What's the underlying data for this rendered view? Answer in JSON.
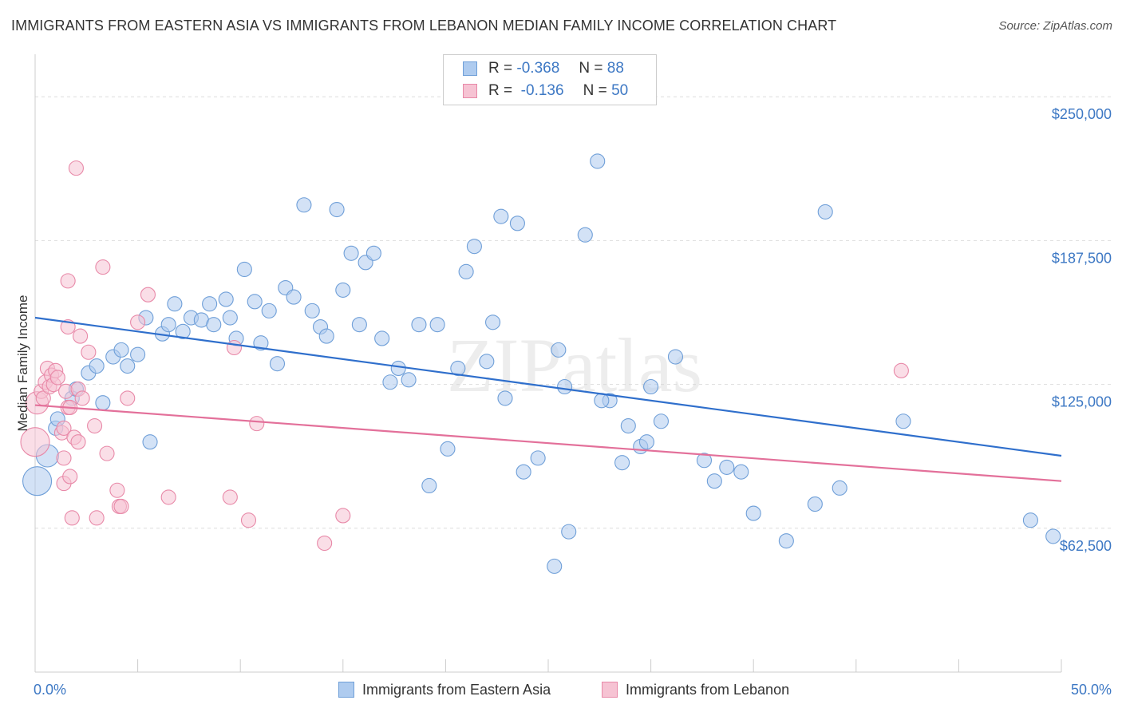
{
  "title": "IMMIGRANTS FROM EASTERN ASIA VS IMMIGRANTS FROM LEBANON MEDIAN FAMILY INCOME CORRELATION CHART",
  "source": "Source: ZipAtlas.com",
  "watermark": "ZIPatlas",
  "colors": {
    "blue_fill": "#aecbef",
    "blue_stroke": "#6f9fd8",
    "blue_line": "#2f6fcc",
    "pink_fill": "#f6c3d3",
    "pink_stroke": "#e889a8",
    "pink_line": "#e3709a",
    "tick_text": "#3d78c4"
  },
  "legend": {
    "r_label": "R =",
    "n_label": "N =",
    "series1": {
      "r": "-0.368",
      "n": "88"
    },
    "series2": {
      "r": "-0.136",
      "n": "50"
    }
  },
  "bottom_legend": {
    "series1": "Immigrants from Eastern Asia",
    "series2": "Immigrants from Lebanon"
  },
  "chart_data": {
    "type": "scatter",
    "title": "IMMIGRANTS FROM EASTERN ASIA VS IMMIGRANTS FROM LEBANON MEDIAN FAMILY INCOME CORRELATION CHART",
    "xlabel": "",
    "ylabel": "Median Family Income",
    "xlim": [
      0,
      50
    ],
    "ylim": [
      0,
      265000
    ],
    "x_tick_labels": [
      "0.0%",
      "50.0%"
    ],
    "y_ticks": [
      {
        "value": 62500,
        "label": "$62,500"
      },
      {
        "value": 125000,
        "label": "$125,000"
      },
      {
        "value": 187500,
        "label": "$187,500"
      },
      {
        "value": 250000,
        "label": "$250,000"
      }
    ],
    "series": [
      {
        "name": "Immigrants from Eastern Asia",
        "color": "#aecbef",
        "trend": {
          "x0": 0,
          "y0": 154000,
          "x1": 50,
          "y1": 94000
        },
        "points": [
          [
            0.1,
            83000,
            3
          ],
          [
            0.6,
            94000,
            2
          ],
          [
            1.0,
            106000,
            1
          ],
          [
            1.1,
            110000,
            1
          ],
          [
            1.8,
            119000,
            1
          ],
          [
            2.0,
            123000,
            1
          ],
          [
            2.6,
            130000,
            1
          ],
          [
            3.0,
            133000,
            1
          ],
          [
            3.3,
            117000,
            1
          ],
          [
            3.8,
            137000,
            1
          ],
          [
            4.2,
            140000,
            1
          ],
          [
            4.5,
            133000,
            1
          ],
          [
            5.0,
            138000,
            1
          ],
          [
            5.4,
            154000,
            1
          ],
          [
            5.6,
            100000,
            1
          ],
          [
            6.2,
            147000,
            1
          ],
          [
            6.5,
            151000,
            1
          ],
          [
            6.8,
            160000,
            1
          ],
          [
            7.2,
            148000,
            1
          ],
          [
            7.6,
            154000,
            1
          ],
          [
            8.1,
            153000,
            1
          ],
          [
            8.5,
            160000,
            1
          ],
          [
            8.7,
            151000,
            1
          ],
          [
            9.3,
            162000,
            1
          ],
          [
            9.5,
            154000,
            1
          ],
          [
            9.8,
            145000,
            1
          ],
          [
            10.2,
            175000,
            1
          ],
          [
            10.7,
            161000,
            1
          ],
          [
            11.0,
            143000,
            1
          ],
          [
            11.4,
            157000,
            1
          ],
          [
            11.8,
            134000,
            1
          ],
          [
            12.2,
            167000,
            1
          ],
          [
            12.6,
            163000,
            1
          ],
          [
            13.1,
            203000,
            1
          ],
          [
            13.5,
            157000,
            1
          ],
          [
            13.9,
            150000,
            1
          ],
          [
            14.2,
            146000,
            1
          ],
          [
            14.7,
            201000,
            1
          ],
          [
            15.0,
            166000,
            1
          ],
          [
            15.4,
            182000,
            1
          ],
          [
            15.8,
            151000,
            1
          ],
          [
            16.1,
            178000,
            1
          ],
          [
            16.5,
            182000,
            1
          ],
          [
            16.9,
            145000,
            1
          ],
          [
            17.3,
            126000,
            1
          ],
          [
            17.7,
            132000,
            1
          ],
          [
            18.2,
            127000,
            1
          ],
          [
            18.7,
            151000,
            1
          ],
          [
            19.2,
            81000,
            1
          ],
          [
            19.6,
            151000,
            1
          ],
          [
            20.1,
            97000,
            1
          ],
          [
            20.6,
            132000,
            1
          ],
          [
            21.0,
            174000,
            1
          ],
          [
            21.4,
            185000,
            1
          ],
          [
            22.0,
            135000,
            1
          ],
          [
            22.3,
            152000,
            1
          ],
          [
            22.7,
            198000,
            1
          ],
          [
            22.9,
            119000,
            1
          ],
          [
            23.5,
            195000,
            1
          ],
          [
            23.8,
            87000,
            1
          ],
          [
            24.5,
            93000,
            1
          ],
          [
            25.5,
            140000,
            1
          ],
          [
            25.8,
            124000,
            1
          ],
          [
            25.3,
            46000,
            1
          ],
          [
            26.0,
            61000,
            1
          ],
          [
            26.8,
            190000,
            1
          ],
          [
            27.4,
            222000,
            1
          ],
          [
            28.0,
            118000,
            1
          ],
          [
            27.6,
            118000,
            1
          ],
          [
            28.6,
            91000,
            1
          ],
          [
            28.9,
            107000,
            1
          ],
          [
            29.5,
            98000,
            1
          ],
          [
            29.8,
            100000,
            1
          ],
          [
            30.0,
            124000,
            1
          ],
          [
            30.5,
            109000,
            1
          ],
          [
            31.2,
            137000,
            1
          ],
          [
            32.6,
            92000,
            1
          ],
          [
            33.1,
            83000,
            1
          ],
          [
            33.7,
            89000,
            1
          ],
          [
            34.4,
            87000,
            1
          ],
          [
            35.0,
            69000,
            1
          ],
          [
            36.6,
            57000,
            1
          ],
          [
            38.0,
            73000,
            1
          ],
          [
            38.5,
            200000,
            1
          ],
          [
            39.2,
            80000,
            1
          ],
          [
            42.3,
            109000,
            1
          ],
          [
            48.5,
            66000,
            1
          ],
          [
            49.6,
            59000,
            1
          ]
        ]
      },
      {
        "name": "Immigrants from Lebanon",
        "color": "#f6c3d3",
        "trend": {
          "x0": 0,
          "y0": 116000,
          "x1": 50,
          "y1": 83000
        },
        "points": [
          [
            0.0,
            100000,
            3
          ],
          [
            0.1,
            117000,
            2
          ],
          [
            0.3,
            122000,
            1
          ],
          [
            0.4,
            119000,
            1
          ],
          [
            0.5,
            126000,
            1
          ],
          [
            0.6,
            132000,
            1
          ],
          [
            0.7,
            124000,
            1
          ],
          [
            0.8,
            129000,
            1
          ],
          [
            0.9,
            125000,
            1
          ],
          [
            1.0,
            131000,
            1
          ],
          [
            1.1,
            128000,
            1
          ],
          [
            1.3,
            104000,
            1
          ],
          [
            1.4,
            106000,
            1
          ],
          [
            1.5,
            122000,
            1
          ],
          [
            1.4,
            93000,
            1
          ],
          [
            1.6,
            115000,
            1
          ],
          [
            1.4,
            82000,
            1
          ],
          [
            1.7,
            115000,
            1
          ],
          [
            1.6,
            150000,
            1
          ],
          [
            1.6,
            170000,
            1
          ],
          [
            1.7,
            85000,
            1
          ],
          [
            1.8,
            67000,
            1
          ],
          [
            1.9,
            102000,
            1
          ],
          [
            2.0,
            219000,
            1
          ],
          [
            2.1,
            100000,
            1
          ],
          [
            2.2,
            146000,
            1
          ],
          [
            2.1,
            123000,
            1
          ],
          [
            2.3,
            119000,
            1
          ],
          [
            2.6,
            139000,
            1
          ],
          [
            2.9,
            107000,
            1
          ],
          [
            3.0,
            67000,
            1
          ],
          [
            3.3,
            176000,
            1
          ],
          [
            3.5,
            95000,
            1
          ],
          [
            4.0,
            79000,
            1
          ],
          [
            4.1,
            72000,
            1
          ],
          [
            4.2,
            72000,
            1
          ],
          [
            4.5,
            119000,
            1
          ],
          [
            5.0,
            152000,
            1
          ],
          [
            5.5,
            164000,
            1
          ],
          [
            6.5,
            76000,
            1
          ],
          [
            9.5,
            76000,
            1
          ],
          [
            9.7,
            141000,
            1
          ],
          [
            10.4,
            66000,
            1
          ],
          [
            10.8,
            108000,
            1
          ],
          [
            14.1,
            56000,
            1
          ],
          [
            15.0,
            68000,
            1
          ],
          [
            42.2,
            131000,
            1
          ]
        ]
      }
    ]
  }
}
